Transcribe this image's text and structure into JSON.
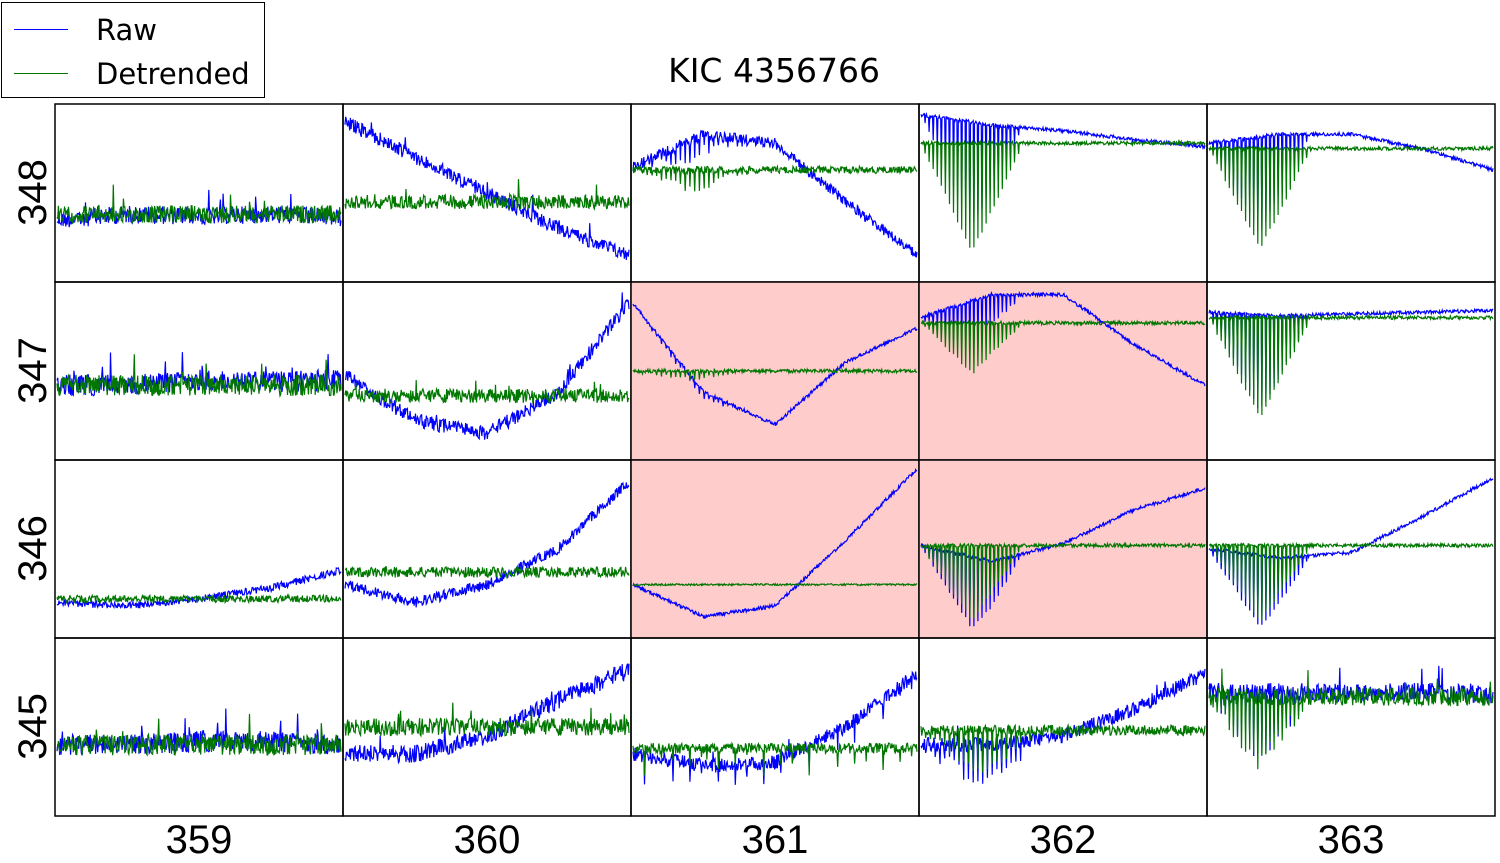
{
  "legend": {
    "entries": [
      {
        "label": "Raw",
        "color": "#0000ff"
      },
      {
        "label": "Detrended",
        "color": "#007700"
      }
    ]
  },
  "chart_data": {
    "type": "line",
    "title": "KIC 4356766",
    "xlabel": "",
    "ylabel": "",
    "column_labels": [
      "359",
      "360",
      "361",
      "362",
      "363"
    ],
    "row_labels": [
      "348",
      "347",
      "346",
      "345"
    ],
    "highlight_color": "#ffcccc",
    "series": [
      {
        "name": "Raw",
        "color": "#0000ff"
      },
      {
        "name": "Detrended",
        "color": "#007700"
      }
    ],
    "panels": [
      {
        "row": "348",
        "col": "359",
        "highlighted": false,
        "raw_trend": [
          0.65,
          0.62,
          0.63,
          0.62,
          0.64
        ],
        "raw_noise": 0.05,
        "det_level": 0.62,
        "det_noise": 0.05,
        "dips": 0,
        "dip_depth": 0
      },
      {
        "row": "348",
        "col": "360",
        "highlighted": false,
        "raw_trend": [
          0.1,
          0.3,
          0.5,
          0.7,
          0.85
        ],
        "raw_noise": 0.04,
        "det_level": 0.55,
        "det_noise": 0.04,
        "dips": 0,
        "dip_depth": 0
      },
      {
        "row": "348",
        "col": "361",
        "highlighted": false,
        "raw_trend": [
          0.35,
          0.17,
          0.22,
          0.55,
          0.85
        ],
        "raw_noise": 0.03,
        "det_level": 0.37,
        "det_noise": 0.02,
        "dips": 60,
        "dip_depth": 0.12
      },
      {
        "row": "348",
        "col": "362",
        "highlighted": false,
        "raw_trend": [
          0.06,
          0.12,
          0.15,
          0.2,
          0.24
        ],
        "raw_noise": 0.01,
        "det_level": 0.22,
        "det_noise": 0.01,
        "dips": 70,
        "dip_depth": 0.65
      },
      {
        "row": "348",
        "col": "363",
        "highlighted": false,
        "raw_trend": [
          0.22,
          0.17,
          0.17,
          0.25,
          0.37
        ],
        "raw_noise": 0.01,
        "det_level": 0.25,
        "det_noise": 0.01,
        "dips": 70,
        "dip_depth": 0.6
      },
      {
        "row": "347",
        "col": "359",
        "highlighted": false,
        "raw_trend": [
          0.58,
          0.58,
          0.55,
          0.56,
          0.55
        ],
        "raw_noise": 0.06,
        "det_level": 0.58,
        "det_noise": 0.06,
        "dips": 0,
        "dip_depth": 0
      },
      {
        "row": "347",
        "col": "360",
        "highlighted": false,
        "raw_trend": [
          0.52,
          0.78,
          0.85,
          0.62,
          0.12
        ],
        "raw_noise": 0.04,
        "det_level": 0.64,
        "det_noise": 0.04,
        "dips": 0,
        "dip_depth": 0
      },
      {
        "row": "347",
        "col": "361",
        "highlighted": true,
        "raw_trend": [
          0.12,
          0.62,
          0.8,
          0.45,
          0.26
        ],
        "raw_noise": 0.01,
        "det_level": 0.5,
        "det_noise": 0.01,
        "dips": 60,
        "dip_depth": 0.05
      },
      {
        "row": "347",
        "col": "362",
        "highlighted": true,
        "raw_trend": [
          0.2,
          0.07,
          0.07,
          0.35,
          0.58
        ],
        "raw_noise": 0.01,
        "det_level": 0.23,
        "det_noise": 0.01,
        "dips": 70,
        "dip_depth": 0.3
      },
      {
        "row": "347",
        "col": "363",
        "highlighted": false,
        "raw_trend": [
          0.17,
          0.19,
          0.18,
          0.17,
          0.16
        ],
        "raw_noise": 0.01,
        "det_level": 0.2,
        "det_noise": 0.01,
        "dips": 70,
        "dip_depth": 0.6
      },
      {
        "row": "346",
        "col": "359",
        "highlighted": false,
        "raw_trend": [
          0.8,
          0.82,
          0.78,
          0.72,
          0.62
        ],
        "raw_noise": 0.02,
        "det_level": 0.78,
        "det_noise": 0.02,
        "dips": 0,
        "dip_depth": 0
      },
      {
        "row": "346",
        "col": "360",
        "highlighted": false,
        "raw_trend": [
          0.7,
          0.8,
          0.7,
          0.5,
          0.12
        ],
        "raw_noise": 0.03,
        "det_level": 0.63,
        "det_noise": 0.03,
        "dips": 0,
        "dip_depth": 0
      },
      {
        "row": "346",
        "col": "361",
        "highlighted": true,
        "raw_trend": [
          0.7,
          0.88,
          0.82,
          0.45,
          0.05
        ],
        "raw_noise": 0.01,
        "det_level": 0.7,
        "det_noise": 0.005,
        "dips": 0,
        "dip_depth": 0
      },
      {
        "row": "346",
        "col": "362",
        "highlighted": true,
        "raw_trend": [
          0.48,
          0.57,
          0.47,
          0.28,
          0.16
        ],
        "raw_noise": 0.01,
        "det_level": 0.48,
        "det_noise": 0.01,
        "dips": 70,
        "dip_depth": 0.45
      },
      {
        "row": "346",
        "col": "363",
        "highlighted": false,
        "raw_trend": [
          0.5,
          0.55,
          0.52,
          0.32,
          0.1
        ],
        "raw_noise": 0.01,
        "det_level": 0.48,
        "det_noise": 0.01,
        "dips": 70,
        "dip_depth": 0.45
      },
      {
        "row": "345",
        "col": "359",
        "highlighted": false,
        "raw_trend": [
          0.6,
          0.6,
          0.58,
          0.58,
          0.6
        ],
        "raw_noise": 0.06,
        "det_level": 0.6,
        "det_noise": 0.06,
        "dips": 0,
        "dip_depth": 0
      },
      {
        "row": "345",
        "col": "360",
        "highlighted": false,
        "raw_trend": [
          0.65,
          0.65,
          0.55,
          0.35,
          0.18
        ],
        "raw_noise": 0.05,
        "det_level": 0.5,
        "det_noise": 0.05,
        "dips": 0,
        "dip_depth": 0
      },
      {
        "row": "345",
        "col": "361",
        "highlighted": false,
        "raw_trend": [
          0.65,
          0.72,
          0.7,
          0.5,
          0.2
        ],
        "raw_noise": 0.04,
        "det_level": 0.62,
        "det_noise": 0.03,
        "dips": 50,
        "dip_depth": 0.15
      },
      {
        "row": "345",
        "col": "362",
        "highlighted": false,
        "raw_trend": [
          0.6,
          0.6,
          0.55,
          0.4,
          0.2
        ],
        "raw_noise": 0.04,
        "det_level": 0.52,
        "det_noise": 0.03,
        "dips": 60,
        "dip_depth": 0.25
      },
      {
        "row": "345",
        "col": "363",
        "highlighted": false,
        "raw_trend": [
          0.3,
          0.3,
          0.31,
          0.3,
          0.32
        ],
        "raw_noise": 0.05,
        "det_level": 0.33,
        "det_noise": 0.05,
        "dips": 70,
        "dip_depth": 0.4
      }
    ]
  }
}
